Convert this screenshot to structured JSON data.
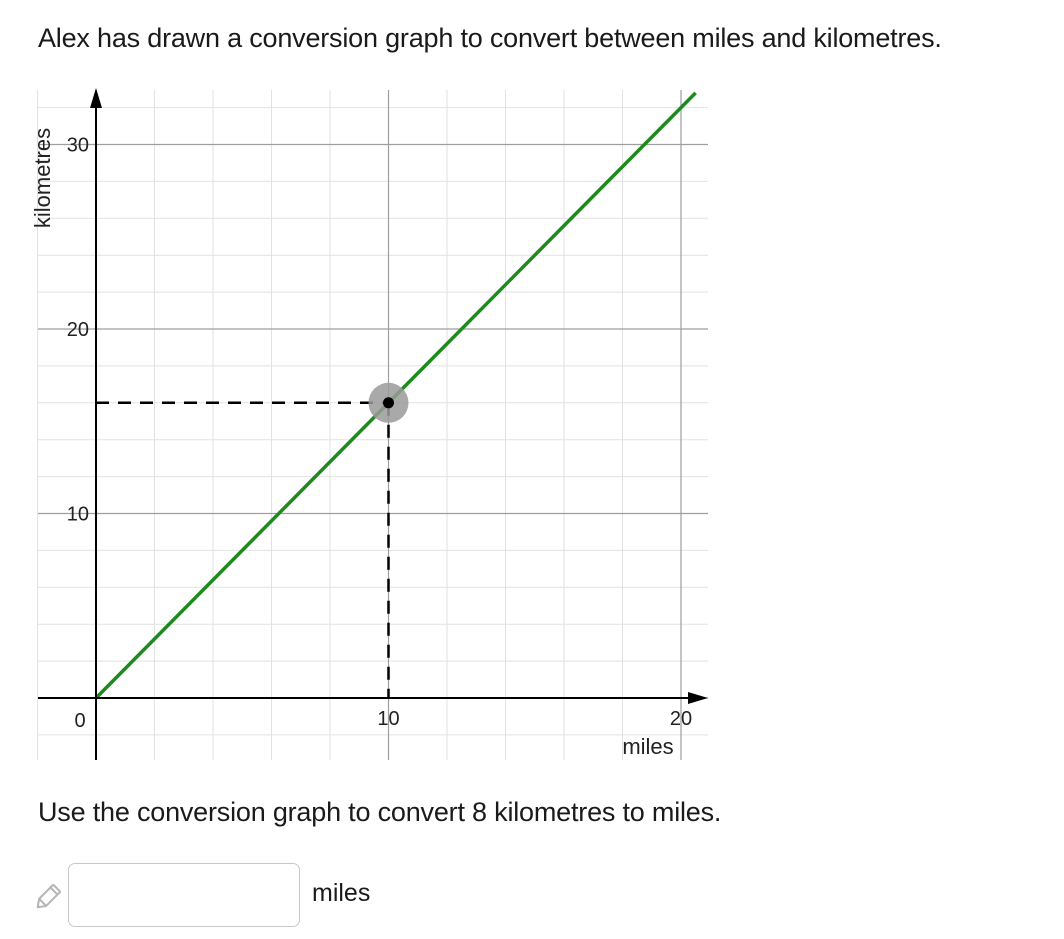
{
  "question": {
    "intro": "Alex has drawn a conversion graph to convert between miles and kilometres.",
    "prompt": "Use the conversion graph to convert 8 kilometres to miles."
  },
  "answer": {
    "value": "",
    "placeholder": "",
    "unit": "miles",
    "edit_icon": "pencil-icon"
  },
  "chart_data": {
    "type": "line",
    "title": "",
    "xlabel": "miles",
    "ylabel": "kilometres",
    "xlim": [
      0,
      21
    ],
    "ylim": [
      0,
      33
    ],
    "grid": true,
    "x_ticks": [
      0,
      10,
      20
    ],
    "y_ticks": [
      10,
      20,
      30
    ],
    "series": [
      {
        "x": [
          0,
          20.5
        ],
        "y": [
          0,
          32.8
        ],
        "color": "#1e8a1e"
      }
    ],
    "highlight_point": {
      "x": 10,
      "y": 16
    },
    "colors": {
      "line": "#1e8a1e",
      "grid_major": "#9e9e9e",
      "grid_minor": "#e2e2e2",
      "axis": "#000000",
      "highlight_halo": "#9a9a9a"
    }
  }
}
